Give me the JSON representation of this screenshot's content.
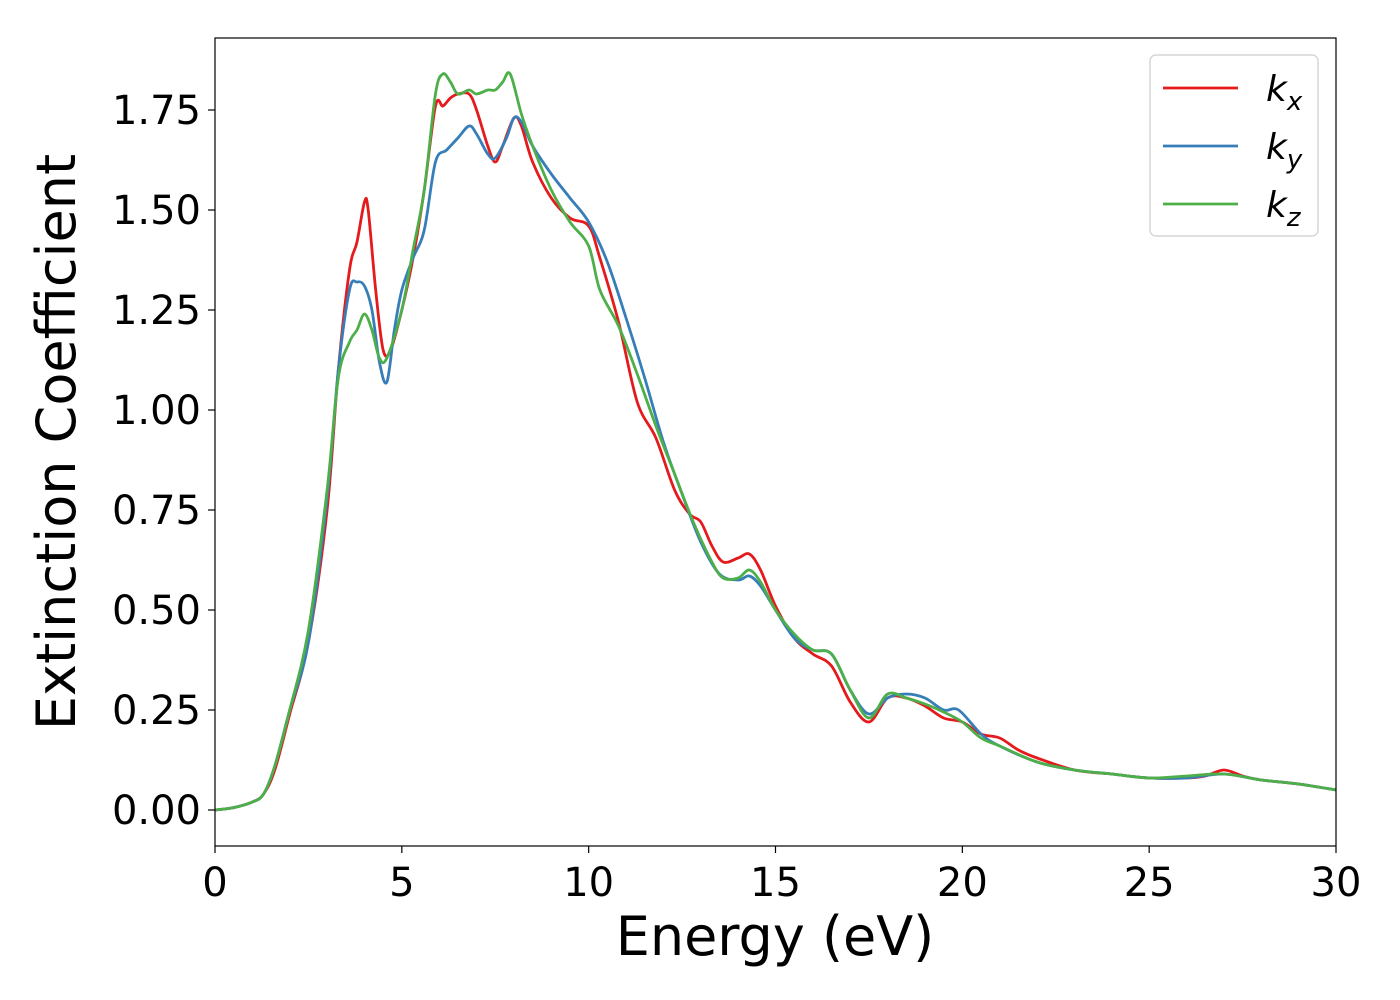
{
  "chart_data": {
    "type": "line",
    "title": "",
    "xlabel": "Energy (eV)",
    "ylabel": "Extinction Coefficient",
    "xlim": [
      0,
      30
    ],
    "ylim": [
      -0.09,
      1.93
    ],
    "xticks": [
      0,
      5,
      10,
      15,
      20,
      25,
      30
    ],
    "xtick_labels": [
      "0",
      "5",
      "10",
      "15",
      "20",
      "25",
      "30"
    ],
    "yticks": [
      0,
      0.25,
      0.5,
      0.75,
      1.0,
      1.25,
      1.5,
      1.75
    ],
    "ytick_labels": [
      "0.00",
      "0.25",
      "0.50",
      "0.75",
      "1.00",
      "1.25",
      "1.50",
      "1.75"
    ],
    "grid": false,
    "legend": {
      "position": "top-right"
    },
    "series": [
      {
        "name": "k_x",
        "label_main": "k",
        "label_sub": "x",
        "color": "#e41a1c",
        "points": [
          [
            0,
            0
          ],
          [
            0.5,
            0.006
          ],
          [
            1.0,
            0.02
          ],
          [
            1.3,
            0.04
          ],
          [
            1.6,
            0.1
          ],
          [
            2.0,
            0.24
          ],
          [
            2.5,
            0.42
          ],
          [
            3.0,
            0.75
          ],
          [
            3.3,
            1.1
          ],
          [
            3.6,
            1.35
          ],
          [
            3.8,
            1.42
          ],
          [
            4.0,
            1.52
          ],
          [
            4.1,
            1.5
          ],
          [
            4.3,
            1.3
          ],
          [
            4.5,
            1.15
          ],
          [
            4.7,
            1.15
          ],
          [
            5.0,
            1.25
          ],
          [
            5.3,
            1.38
          ],
          [
            5.6,
            1.55
          ],
          [
            5.9,
            1.76
          ],
          [
            6.1,
            1.76
          ],
          [
            6.3,
            1.78
          ],
          [
            6.5,
            1.79
          ],
          [
            6.8,
            1.79
          ],
          [
            7.0,
            1.75
          ],
          [
            7.3,
            1.66
          ],
          [
            7.5,
            1.62
          ],
          [
            7.7,
            1.66
          ],
          [
            8.0,
            1.73
          ],
          [
            8.2,
            1.71
          ],
          [
            8.5,
            1.62
          ],
          [
            9.0,
            1.53
          ],
          [
            9.5,
            1.48
          ],
          [
            10.0,
            1.46
          ],
          [
            10.3,
            1.38
          ],
          [
            10.8,
            1.22
          ],
          [
            11.3,
            1.02
          ],
          [
            11.8,
            0.93
          ],
          [
            12.3,
            0.8
          ],
          [
            12.7,
            0.74
          ],
          [
            13.0,
            0.72
          ],
          [
            13.3,
            0.66
          ],
          [
            13.6,
            0.62
          ],
          [
            14.0,
            0.63
          ],
          [
            14.3,
            0.64
          ],
          [
            14.6,
            0.6
          ],
          [
            15.0,
            0.51
          ],
          [
            15.5,
            0.43
          ],
          [
            16.0,
            0.39
          ],
          [
            16.5,
            0.36
          ],
          [
            17.0,
            0.27
          ],
          [
            17.5,
            0.22
          ],
          [
            18.0,
            0.28
          ],
          [
            18.5,
            0.28
          ],
          [
            19.0,
            0.26
          ],
          [
            19.5,
            0.23
          ],
          [
            20.0,
            0.22
          ],
          [
            20.5,
            0.19
          ],
          [
            21.0,
            0.18
          ],
          [
            21.5,
            0.15
          ],
          [
            22.0,
            0.13
          ],
          [
            23.0,
            0.1
          ],
          [
            24.0,
            0.09
          ],
          [
            25.0,
            0.08
          ],
          [
            26.0,
            0.08
          ],
          [
            26.5,
            0.085
          ],
          [
            27.0,
            0.1
          ],
          [
            27.5,
            0.085
          ],
          [
            28.0,
            0.075
          ],
          [
            29.0,
            0.065
          ],
          [
            30.0,
            0.05
          ]
        ]
      },
      {
        "name": "k_y",
        "label_main": "k",
        "label_sub": "y",
        "color": "#377eb8",
        "points": [
          [
            0,
            0
          ],
          [
            0.5,
            0.006
          ],
          [
            1.0,
            0.02
          ],
          [
            1.3,
            0.04
          ],
          [
            1.6,
            0.11
          ],
          [
            2.0,
            0.25
          ],
          [
            2.5,
            0.42
          ],
          [
            3.0,
            0.78
          ],
          [
            3.3,
            1.1
          ],
          [
            3.6,
            1.3
          ],
          [
            3.8,
            1.32
          ],
          [
            4.0,
            1.31
          ],
          [
            4.2,
            1.25
          ],
          [
            4.4,
            1.12
          ],
          [
            4.6,
            1.07
          ],
          [
            4.8,
            1.2
          ],
          [
            5.0,
            1.3
          ],
          [
            5.3,
            1.38
          ],
          [
            5.6,
            1.45
          ],
          [
            5.9,
            1.62
          ],
          [
            6.2,
            1.65
          ],
          [
            6.5,
            1.68
          ],
          [
            6.8,
            1.71
          ],
          [
            7.0,
            1.69
          ],
          [
            7.3,
            1.64
          ],
          [
            7.5,
            1.63
          ],
          [
            7.8,
            1.68
          ],
          [
            8.0,
            1.73
          ],
          [
            8.2,
            1.72
          ],
          [
            8.5,
            1.66
          ],
          [
            9.0,
            1.59
          ],
          [
            9.5,
            1.53
          ],
          [
            10.0,
            1.47
          ],
          [
            10.5,
            1.37
          ],
          [
            11.0,
            1.23
          ],
          [
            11.5,
            1.08
          ],
          [
            12.0,
            0.92
          ],
          [
            12.5,
            0.79
          ],
          [
            13.0,
            0.67
          ],
          [
            13.5,
            0.59
          ],
          [
            14.0,
            0.575
          ],
          [
            14.3,
            0.585
          ],
          [
            14.6,
            0.56
          ],
          [
            15.0,
            0.5
          ],
          [
            15.5,
            0.43
          ],
          [
            16.0,
            0.4
          ],
          [
            16.5,
            0.39
          ],
          [
            17.0,
            0.3
          ],
          [
            17.5,
            0.24
          ],
          [
            18.0,
            0.28
          ],
          [
            18.5,
            0.29
          ],
          [
            19.0,
            0.28
          ],
          [
            19.5,
            0.25
          ],
          [
            19.9,
            0.25
          ],
          [
            20.5,
            0.19
          ],
          [
            21.0,
            0.16
          ],
          [
            22.0,
            0.12
          ],
          [
            23.0,
            0.1
          ],
          [
            24.0,
            0.09
          ],
          [
            25.0,
            0.08
          ],
          [
            26.0,
            0.08
          ],
          [
            27.0,
            0.09
          ],
          [
            28.0,
            0.075
          ],
          [
            29.0,
            0.065
          ],
          [
            30.0,
            0.05
          ]
        ]
      },
      {
        "name": "k_z",
        "label_main": "k",
        "label_sub": "z",
        "color": "#4daf4a",
        "points": [
          [
            0,
            0
          ],
          [
            0.5,
            0.006
          ],
          [
            1.0,
            0.02
          ],
          [
            1.3,
            0.04
          ],
          [
            1.6,
            0.11
          ],
          [
            2.0,
            0.25
          ],
          [
            2.5,
            0.45
          ],
          [
            3.0,
            0.8
          ],
          [
            3.3,
            1.08
          ],
          [
            3.6,
            1.17
          ],
          [
            3.8,
            1.2
          ],
          [
            4.0,
            1.24
          ],
          [
            4.2,
            1.2
          ],
          [
            4.4,
            1.13
          ],
          [
            4.6,
            1.13
          ],
          [
            5.0,
            1.25
          ],
          [
            5.3,
            1.4
          ],
          [
            5.6,
            1.55
          ],
          [
            5.9,
            1.79
          ],
          [
            6.1,
            1.84
          ],
          [
            6.3,
            1.82
          ],
          [
            6.5,
            1.79
          ],
          [
            6.8,
            1.8
          ],
          [
            7.0,
            1.79
          ],
          [
            7.3,
            1.8
          ],
          [
            7.5,
            1.8
          ],
          [
            7.7,
            1.82
          ],
          [
            7.9,
            1.84
          ],
          [
            8.2,
            1.74
          ],
          [
            8.5,
            1.66
          ],
          [
            9.0,
            1.55
          ],
          [
            9.5,
            1.47
          ],
          [
            10.0,
            1.41
          ],
          [
            10.3,
            1.3
          ],
          [
            10.8,
            1.21
          ],
          [
            11.3,
            1.09
          ],
          [
            11.8,
            0.96
          ],
          [
            12.3,
            0.84
          ],
          [
            12.8,
            0.72
          ],
          [
            13.3,
            0.62
          ],
          [
            13.6,
            0.58
          ],
          [
            14.0,
            0.58
          ],
          [
            14.3,
            0.6
          ],
          [
            14.6,
            0.57
          ],
          [
            15.0,
            0.5
          ],
          [
            15.5,
            0.44
          ],
          [
            16.0,
            0.4
          ],
          [
            16.5,
            0.39
          ],
          [
            17.0,
            0.3
          ],
          [
            17.5,
            0.23
          ],
          [
            18.0,
            0.29
          ],
          [
            18.5,
            0.28
          ],
          [
            19.0,
            0.265
          ],
          [
            19.5,
            0.245
          ],
          [
            20.0,
            0.22
          ],
          [
            20.5,
            0.18
          ],
          [
            21.0,
            0.16
          ],
          [
            22.0,
            0.12
          ],
          [
            23.0,
            0.1
          ],
          [
            24.0,
            0.09
          ],
          [
            25.0,
            0.08
          ],
          [
            26.0,
            0.085
          ],
          [
            27.0,
            0.09
          ],
          [
            28.0,
            0.075
          ],
          [
            29.0,
            0.065
          ],
          [
            30.0,
            0.05
          ]
        ]
      }
    ]
  }
}
